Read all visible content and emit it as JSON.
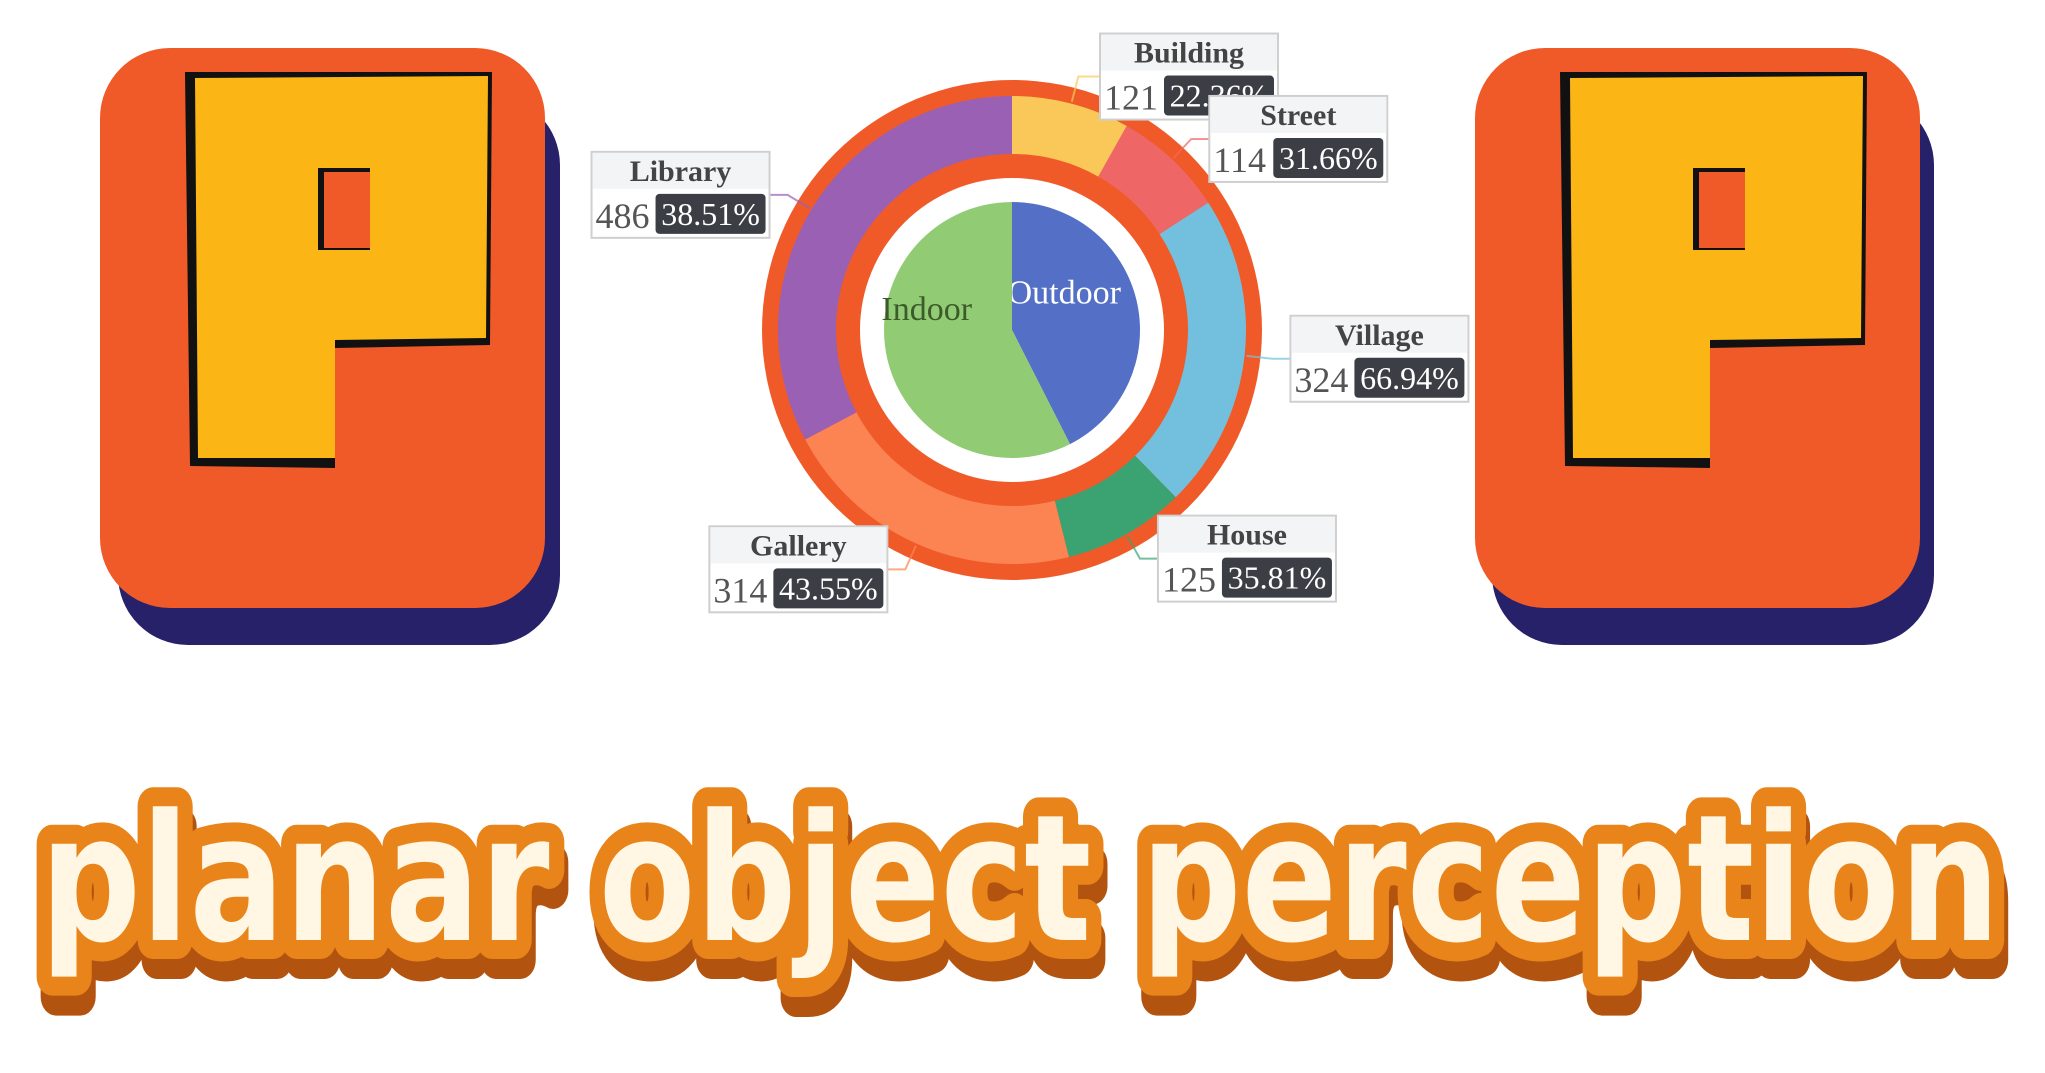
{
  "logo": {
    "left_letter": "P",
    "right_letter": "P",
    "tagline": "planar object perception"
  },
  "colors": {
    "letter_fill": "#FBB514",
    "letter_outline": "#F05A28",
    "letter_shadow": "#27216A",
    "ring": "#F05A28",
    "tagline_fill": "#FFF6E3",
    "tagline_outline": "#E8841A",
    "tagline_shadow": "#B25410",
    "pct_box": "#3B3F45"
  },
  "chart_data": {
    "type": "pie",
    "inner": [
      {
        "name": "Outdoor",
        "value": 684,
        "color": "#5470C6",
        "text_color": "#ffffff"
      },
      {
        "name": "Indoor",
        "value": 925,
        "color": "#91CC75",
        "text_color": "#3D5A2A"
      }
    ],
    "outer": [
      {
        "name": "Building",
        "count": "121",
        "percent": "22.36%",
        "value": 121,
        "color": "#FAC858"
      },
      {
        "name": "Street",
        "count": "114",
        "percent": "31.66%",
        "value": 114,
        "color": "#EE6666"
      },
      {
        "name": "Village",
        "count": "324",
        "percent": "66.94%",
        "value": 324,
        "color": "#73C0DE"
      },
      {
        "name": "House",
        "count": "125",
        "percent": "35.81%",
        "value": 125,
        "color": "#3BA272"
      },
      {
        "name": "Gallery",
        "count": "314",
        "percent": "43.55%",
        "value": 314,
        "color": "#FC8452"
      },
      {
        "name": "Library",
        "count": "486",
        "percent": "38.51%",
        "value": 486,
        "color": "#9A60B4"
      }
    ]
  }
}
